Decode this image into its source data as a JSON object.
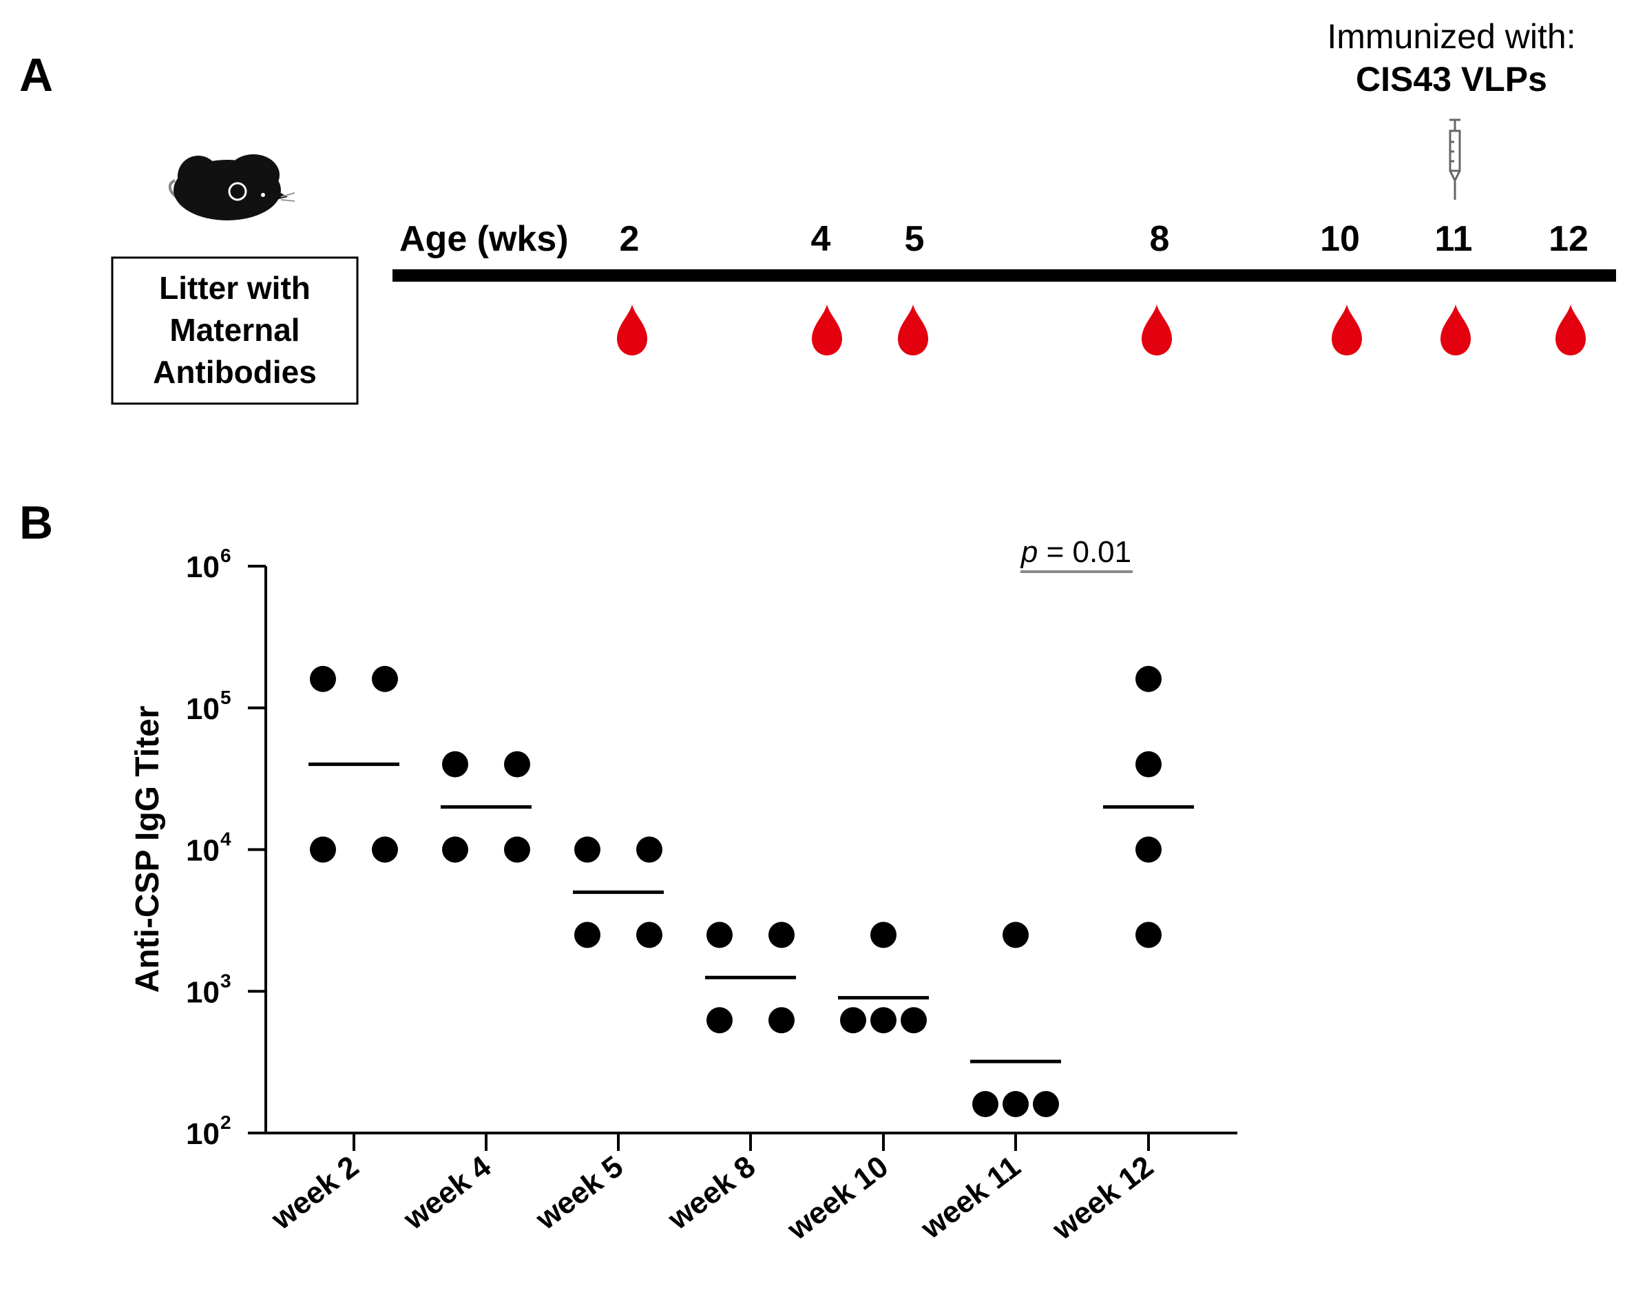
{
  "panelA": {
    "label": "A",
    "age_label": "Age (wks)",
    "weeks": [
      "2",
      "4",
      "5",
      "8",
      "10",
      "11",
      "12"
    ],
    "immunized_line1": "Immunized with:",
    "immunized_line2": "CIS43 VLPs",
    "box_lines": [
      "Litter with",
      "Maternal",
      "Antibodies"
    ],
    "colors": {
      "blood": "#e3000f",
      "line": "#000000"
    },
    "icons": [
      "mouse-icon",
      "syringe-icon",
      "blood-drop-icon"
    ]
  },
  "panelB": {
    "label": "B"
  },
  "chart_data": {
    "type": "scatter",
    "title": "",
    "xlabel": "",
    "ylabel": "Anti-CSP IgG Titer",
    "yscale": "log10",
    "ylim": [
      100,
      1000000
    ],
    "yticks": [
      {
        "base": "10",
        "exp": "2",
        "value": 100
      },
      {
        "base": "10",
        "exp": "3",
        "value": 1000
      },
      {
        "base": "10",
        "exp": "4",
        "value": 10000
      },
      {
        "base": "10",
        "exp": "5",
        "value": 100000
      },
      {
        "base": "10",
        "exp": "6",
        "value": 1000000
      }
    ],
    "categories": [
      "week 2",
      "week 4",
      "week 5",
      "week 8",
      "week 10",
      "week 11",
      "week 12"
    ],
    "series": [
      {
        "name": "week 2",
        "points": [
          160000,
          160000,
          10000,
          10000
        ],
        "median": 40000
      },
      {
        "name": "week 4",
        "points": [
          40000,
          40000,
          10000,
          10000
        ],
        "median": 20000
      },
      {
        "name": "week 5",
        "points": [
          10000,
          10000,
          2500,
          2500
        ],
        "median": 5000
      },
      {
        "name": "week 8",
        "points": [
          2500,
          2500,
          625,
          625
        ],
        "median": 1250
      },
      {
        "name": "week 10",
        "points": [
          2500,
          625,
          625,
          625
        ],
        "median": 900
      },
      {
        "name": "week 11",
        "points": [
          2500,
          160,
          160,
          160
        ],
        "median": 320
      },
      {
        "name": "week 12",
        "points": [
          160000,
          40000,
          10000,
          2500
        ],
        "median": 20000
      }
    ],
    "annotation": {
      "text_italic": "p",
      "text_rest": " = 0.01",
      "from": "week 11",
      "to": "week 12"
    },
    "grid": false
  }
}
